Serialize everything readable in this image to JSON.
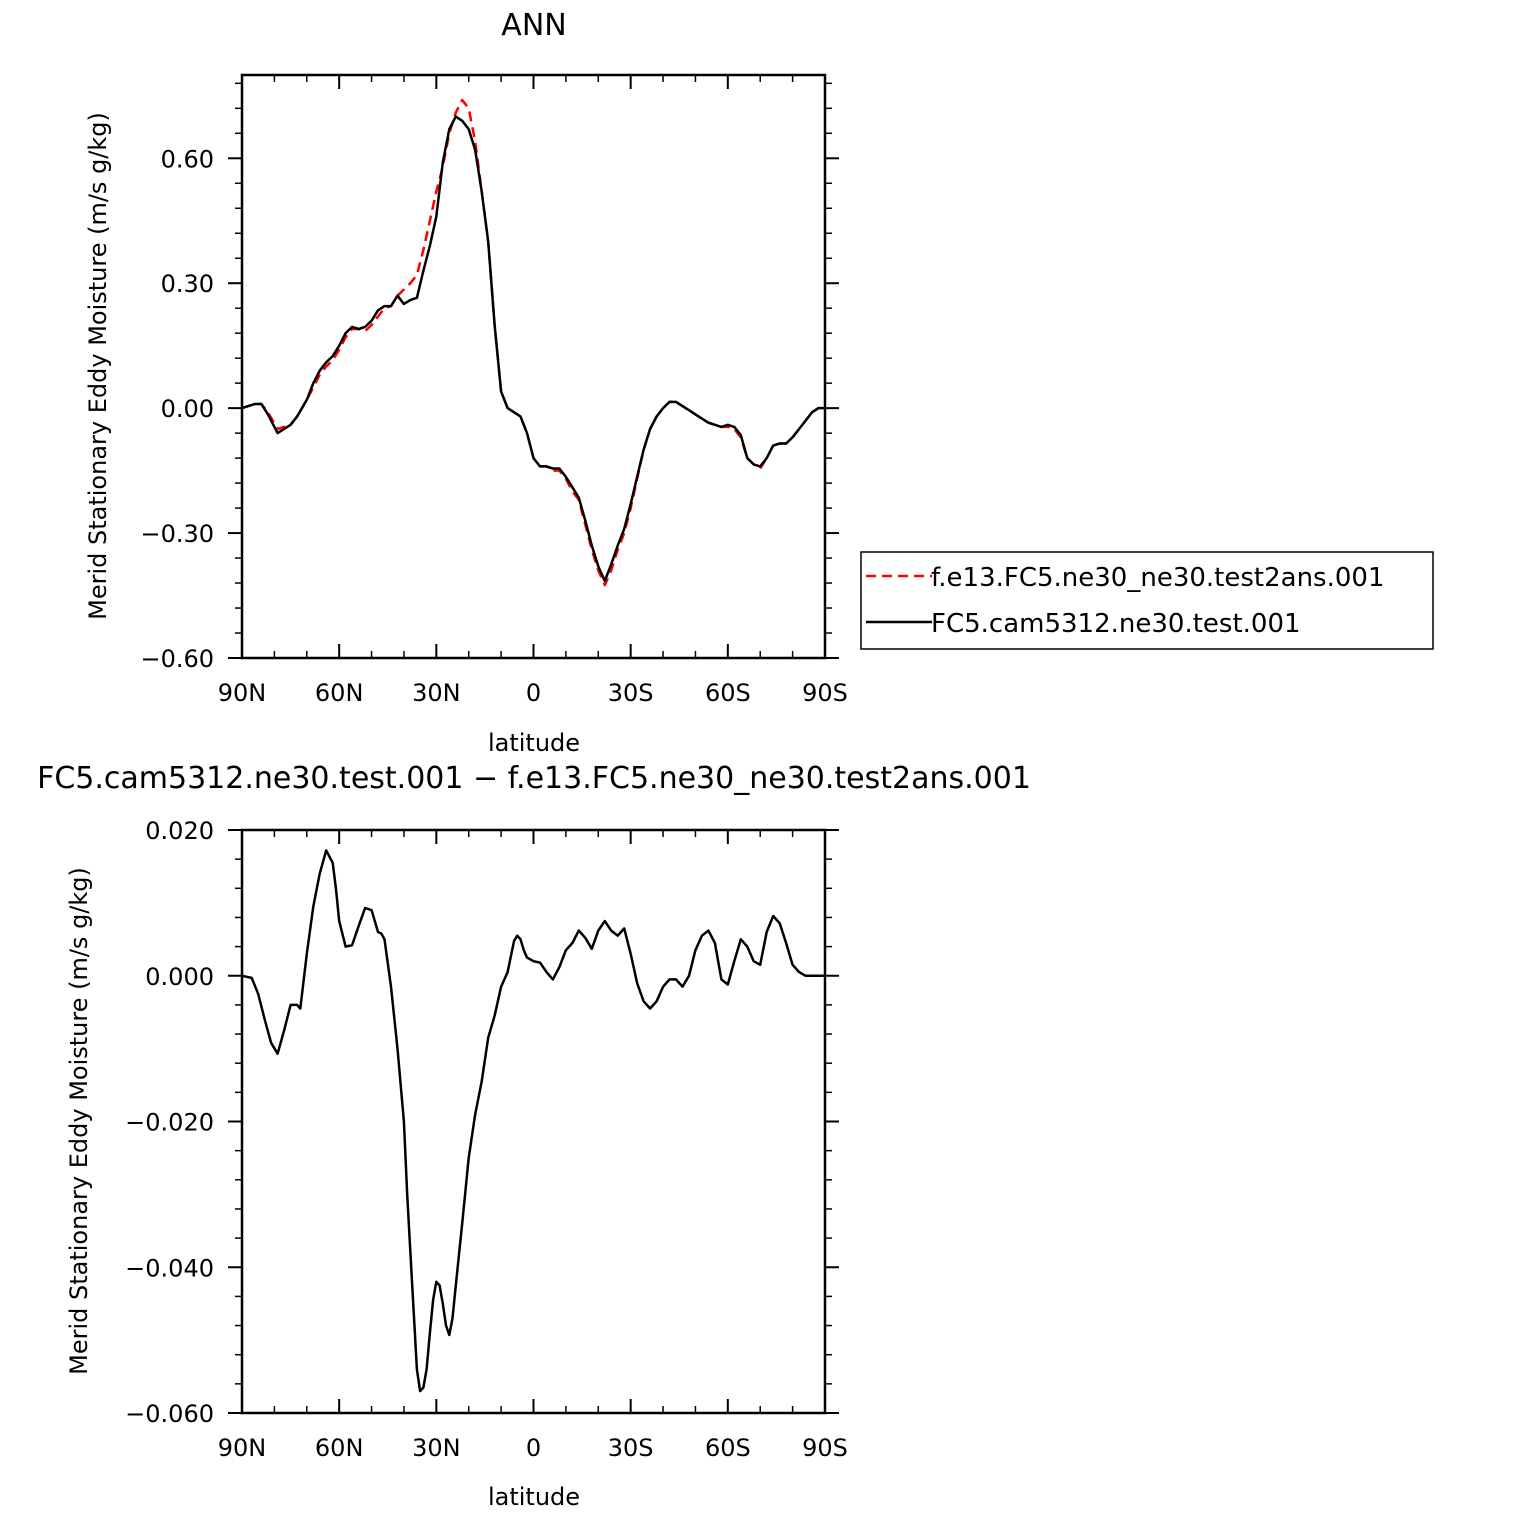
{
  "colors": {
    "series_test": "#ff0000",
    "series_control": "#000000",
    "axes": "#000000",
    "background": "#ffffff"
  },
  "chart_data": [
    {
      "type": "line",
      "title": "ANN",
      "xlabel": "latitude",
      "ylabel": "Merid Stationary Eddy Moisture (m/s g/kg)",
      "xlim": [
        90,
        -90
      ],
      "ylim": [
        -0.6,
        0.8
      ],
      "x_ticks": [
        90,
        60,
        30,
        0,
        -30,
        -60,
        -90
      ],
      "x_tick_labels": [
        "90N",
        "60N",
        "30N",
        "0",
        "30S",
        "60S",
        "90S"
      ],
      "y_ticks": [
        -0.6,
        -0.3,
        0.0,
        0.3,
        0.6
      ],
      "y_tick_labels": [
        "−0.60",
        "−0.30",
        "0.00",
        "0.30",
        "0.60"
      ],
      "grid": false,
      "legend_position": "right",
      "series": [
        {
          "name": "f.e13.FC5.ne30_ne30.test2ans.001",
          "color": "#ff0000",
          "dash": "dashed",
          "x": [
            90,
            86,
            84,
            82,
            79,
            77,
            75,
            73,
            70,
            68,
            66,
            64,
            62,
            60,
            58,
            56,
            54,
            52,
            50,
            48,
            46,
            44,
            42,
            40,
            38,
            36,
            34,
            32,
            30,
            28,
            26,
            24,
            22,
            20,
            18,
            16,
            14,
            12,
            10,
            8,
            6,
            4,
            2,
            0,
            -2,
            -4,
            -6,
            -8,
            -10,
            -12,
            -14,
            -16,
            -18,
            -20,
            -22,
            -24,
            -26,
            -28,
            -30,
            -32,
            -34,
            -36,
            -38,
            -40,
            -42,
            -44,
            -46,
            -48,
            -50,
            -52,
            -54,
            -56,
            -58,
            -60,
            -62,
            -64,
            -66,
            -68,
            -70,
            -72,
            -74,
            -76,
            -78,
            -80,
            -82,
            -84,
            -86,
            -88,
            -90
          ],
          "y": [
            0.0,
            0.01,
            0.01,
            -0.01,
            -0.05,
            -0.045,
            -0.04,
            -0.02,
            0.02,
            0.05,
            0.08,
            0.1,
            0.115,
            0.14,
            0.17,
            0.19,
            0.19,
            0.185,
            0.2,
            0.22,
            0.24,
            0.245,
            0.27,
            0.285,
            0.3,
            0.32,
            0.38,
            0.45,
            0.52,
            0.58,
            0.66,
            0.71,
            0.74,
            0.72,
            0.64,
            0.52,
            0.4,
            0.2,
            0.04,
            0.0,
            -0.01,
            -0.02,
            -0.06,
            -0.12,
            -0.14,
            -0.14,
            -0.15,
            -0.15,
            -0.17,
            -0.2,
            -0.22,
            -0.28,
            -0.34,
            -0.39,
            -0.425,
            -0.39,
            -0.34,
            -0.3,
            -0.24,
            -0.17,
            -0.1,
            -0.05,
            -0.02,
            0.0,
            0.015,
            0.015,
            0.005,
            -0.005,
            -0.015,
            -0.025,
            -0.035,
            -0.04,
            -0.045,
            -0.045,
            -0.05,
            -0.07,
            -0.12,
            -0.135,
            -0.145,
            -0.12,
            -0.09,
            -0.085,
            -0.085,
            -0.07,
            -0.05,
            -0.03,
            -0.01,
            0.0,
            0.0
          ]
        },
        {
          "name": "FC5.cam5312.ne30.test.001",
          "color": "#000000",
          "dash": "solid",
          "x": [
            90,
            86,
            84,
            82,
            79,
            77,
            75,
            73,
            70,
            68,
            66,
            64,
            62,
            60,
            58,
            56,
            54,
            52,
            50,
            48,
            46,
            44,
            42,
            40,
            38,
            36,
            34,
            32,
            30,
            28,
            26,
            24,
            22,
            20,
            18,
            16,
            14,
            12,
            10,
            8,
            6,
            4,
            2,
            0,
            -2,
            -4,
            -6,
            -8,
            -10,
            -12,
            -14,
            -16,
            -18,
            -20,
            -22,
            -24,
            -26,
            -28,
            -30,
            -32,
            -34,
            -36,
            -38,
            -40,
            -42,
            -44,
            -46,
            -48,
            -50,
            -52,
            -54,
            -56,
            -58,
            -60,
            -62,
            -64,
            -66,
            -68,
            -70,
            -72,
            -74,
            -76,
            -78,
            -80,
            -82,
            -84,
            -86,
            -88,
            -90
          ],
          "y": [
            0.0,
            0.01,
            0.01,
            -0.015,
            -0.06,
            -0.05,
            -0.04,
            -0.02,
            0.02,
            0.06,
            0.09,
            0.11,
            0.125,
            0.15,
            0.18,
            0.195,
            0.19,
            0.195,
            0.21,
            0.235,
            0.245,
            0.245,
            0.27,
            0.25,
            0.26,
            0.265,
            0.33,
            0.39,
            0.46,
            0.59,
            0.67,
            0.7,
            0.69,
            0.67,
            0.62,
            0.52,
            0.4,
            0.2,
            0.04,
            0.0,
            -0.01,
            -0.02,
            -0.06,
            -0.12,
            -0.14,
            -0.14,
            -0.145,
            -0.145,
            -0.165,
            -0.19,
            -0.215,
            -0.27,
            -0.33,
            -0.38,
            -0.415,
            -0.375,
            -0.33,
            -0.29,
            -0.23,
            -0.165,
            -0.1,
            -0.05,
            -0.02,
            0.0,
            0.015,
            0.015,
            0.005,
            -0.005,
            -0.015,
            -0.025,
            -0.035,
            -0.04,
            -0.045,
            -0.04,
            -0.045,
            -0.065,
            -0.12,
            -0.135,
            -0.14,
            -0.12,
            -0.09,
            -0.085,
            -0.085,
            -0.07,
            -0.05,
            -0.03,
            -0.01,
            0.0,
            0.0
          ]
        }
      ]
    },
    {
      "type": "line",
      "title": "FC5.cam5312.ne30.test.001 − f.e13.FC5.ne30_ne30.test2ans.001",
      "xlabel": "latitude",
      "ylabel": "Merid Stationary Eddy Moisture (m/s g/kg)",
      "xlim": [
        90,
        -90
      ],
      "ylim": [
        -0.06,
        0.02
      ],
      "x_ticks": [
        90,
        60,
        30,
        0,
        -30,
        -60,
        -90
      ],
      "x_tick_labels": [
        "90N",
        "60N",
        "30N",
        "0",
        "30S",
        "60S",
        "90S"
      ],
      "y_ticks": [
        -0.06,
        -0.04,
        -0.02,
        0.0,
        0.02
      ],
      "y_tick_labels": [
        "−0.060",
        "−0.040",
        "−0.020",
        "0.000",
        "0.020"
      ],
      "grid": false,
      "series": [
        {
          "name": "",
          "color": "#000000",
          "dash": "solid",
          "x": [
            90,
            87,
            85,
            83,
            81,
            79,
            77,
            75,
            73,
            72,
            70,
            68,
            66,
            64,
            62,
            61,
            60,
            58,
            56,
            54,
            52,
            50,
            48,
            47,
            46,
            44,
            42,
            40,
            39,
            38,
            36,
            35,
            34,
            33,
            32,
            31,
            30,
            29,
            28,
            27,
            26,
            25,
            24,
            22,
            20,
            18,
            16,
            14,
            12,
            10,
            8,
            6,
            5,
            4,
            3,
            2,
            0,
            -2,
            -4,
            -6,
            -8,
            -10,
            -12,
            -14,
            -16,
            -18,
            -20,
            -22,
            -24,
            -26,
            -28,
            -30,
            -32,
            -34,
            -36,
            -38,
            -40,
            -42,
            -44,
            -46,
            -48,
            -50,
            -52,
            -54,
            -56,
            -58,
            -60,
            -62,
            -64,
            -66,
            -68,
            -70,
            -72,
            -74,
            -76,
            -78,
            -80,
            -82,
            -84,
            -86,
            -88,
            -90
          ],
          "y": [
            0.0,
            -0.0003,
            -0.0025,
            -0.006,
            -0.0092,
            -0.0107,
            -0.0075,
            -0.004,
            -0.004,
            -0.0045,
            0.003,
            0.0095,
            0.014,
            0.0172,
            0.0155,
            0.012,
            0.0075,
            0.004,
            0.0042,
            0.0068,
            0.0093,
            0.009,
            0.006,
            0.0058,
            0.005,
            -0.0015,
            -0.01,
            -0.02,
            -0.03,
            -0.038,
            -0.054,
            -0.057,
            -0.0565,
            -0.054,
            -0.049,
            -0.0445,
            -0.042,
            -0.0425,
            -0.045,
            -0.048,
            -0.0493,
            -0.047,
            -0.0425,
            -0.034,
            -0.025,
            -0.019,
            -0.0145,
            -0.0085,
            -0.0055,
            -0.0015,
            0.0005,
            0.0048,
            0.0055,
            0.005,
            0.0035,
            0.0025,
            0.002,
            0.0018,
            0.0005,
            -0.0005,
            0.0012,
            0.0035,
            0.0045,
            0.0062,
            0.0052,
            0.0037,
            0.0062,
            0.0075,
            0.0062,
            0.0055,
            0.0065,
            0.003,
            -0.001,
            -0.0035,
            -0.0045,
            -0.0035,
            -0.0015,
            -0.0005,
            -0.0005,
            -0.0015,
            0.0,
            0.0035,
            0.0055,
            0.0062,
            0.0045,
            -0.0005,
            -0.0012,
            0.002,
            0.005,
            0.004,
            0.002,
            0.0015,
            0.006,
            0.0082,
            0.0072,
            0.0045,
            0.0015,
            0.0005,
            0.0,
            0.0,
            0.0,
            0.0
          ]
        }
      ]
    }
  ]
}
